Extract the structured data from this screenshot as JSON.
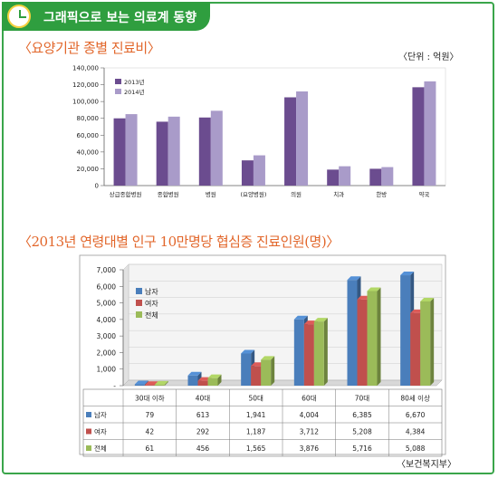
{
  "header": {
    "title": "그래픽으로 보는 의료계 동향"
  },
  "section1": {
    "title": "〈요양기관 종별 진료비〉",
    "unit": "〈단위 : 억원〉"
  },
  "section2": {
    "title": "〈2013년 연령대별 인구 10만명당 협심증 진료인원(명)〉",
    "source": "〈보건복지부〉"
  },
  "colors": {
    "c2013": "#6b4c8f",
    "c2014": "#a99bc9",
    "male": "#4a7ebb",
    "female": "#c0504d",
    "total": "#9bbb59"
  },
  "chart_data": [
    {
      "type": "bar",
      "categories": [
        "상급종합병원",
        "종합병원",
        "병원",
        "(요양병원)",
        "의원",
        "치과",
        "한방",
        "약국"
      ],
      "series": [
        {
          "name": "2013년",
          "values": [
            80000,
            76000,
            81000,
            30000,
            105000,
            19000,
            20000,
            117000
          ]
        },
        {
          "name": "2014년",
          "values": [
            85000,
            82000,
            89000,
            36000,
            112000,
            23000,
            22000,
            124000
          ]
        }
      ],
      "ylim": [
        0,
        140000
      ],
      "yticks": [
        "0",
        "20,000",
        "40,000",
        "60,000",
        "80,000",
        "100,000",
        "120,000",
        "140,000"
      ],
      "legend": "top-left"
    },
    {
      "type": "bar",
      "categories": [
        "30대 이하",
        "40대",
        "50대",
        "60대",
        "70대",
        "80세 이상"
      ],
      "series": [
        {
          "name": "남자",
          "values": [
            79,
            613,
            1941,
            4004,
            6385,
            6670
          ],
          "labels": [
            "79",
            "613",
            "1,941",
            "4,004",
            "6,385",
            "6,670"
          ]
        },
        {
          "name": "여자",
          "values": [
            42,
            292,
            1187,
            3712,
            5208,
            4384
          ],
          "labels": [
            "42",
            "292",
            "1,187",
            "3,712",
            "5,208",
            "4,384"
          ]
        },
        {
          "name": "전체",
          "values": [
            61,
            456,
            1565,
            3876,
            5716,
            5088
          ],
          "labels": [
            "61",
            "456",
            "1,565",
            "3,876",
            "5,716",
            "5,088"
          ]
        }
      ],
      "ylim": [
        0,
        7000
      ],
      "yticks": [
        "-",
        "1,000",
        "2,000",
        "3,000",
        "4,000",
        "5,000",
        "6,000",
        "7,000"
      ],
      "legend": "top-left"
    }
  ]
}
